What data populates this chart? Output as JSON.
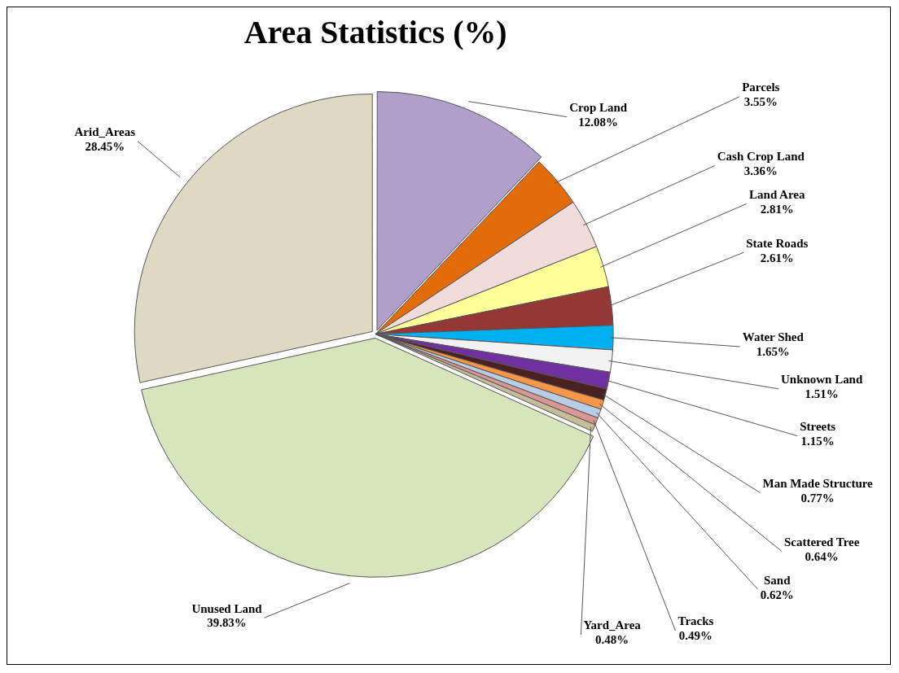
{
  "chart_data": {
    "type": "pie",
    "title": "Area Statistics (%)",
    "categories": [
      "Crop Land",
      "Parcels",
      "Cash Crop Land",
      "Land Area",
      "State Roads",
      "Water Shed",
      "Unknown Land",
      "Streets",
      "Man Made Structure",
      "Scattered Tree",
      "Sand",
      "Tracks",
      "Yard_Area",
      "Unused Land",
      "Arid_Areas"
    ],
    "values": [
      12.08,
      3.55,
      3.36,
      2.81,
      2.61,
      1.65,
      1.51,
      1.15,
      0.77,
      0.64,
      0.62,
      0.49,
      0.48,
      39.83,
      28.45
    ],
    "value_labels": [
      "12.08%",
      "3.55%",
      "3.36%",
      "2.81%",
      "2.61%",
      "1.65%",
      "1.51%",
      "1.15%",
      "0.77%",
      "0.64%",
      "0.62%",
      "0.49%",
      "0.48%",
      "39.83%",
      "28.45%"
    ],
    "colors": [
      "#b09fc8",
      "#e36c0a",
      "#f2dcdb",
      "#ffff99",
      "#953735",
      "#00b0f0",
      "#f2f2f2",
      "#7030a0",
      "#4a2020",
      "#f79646",
      "#b8cce4",
      "#d99694",
      "#c4bd97",
      "#d7e4bc",
      "#ddd9c3"
    ],
    "legend": false
  }
}
